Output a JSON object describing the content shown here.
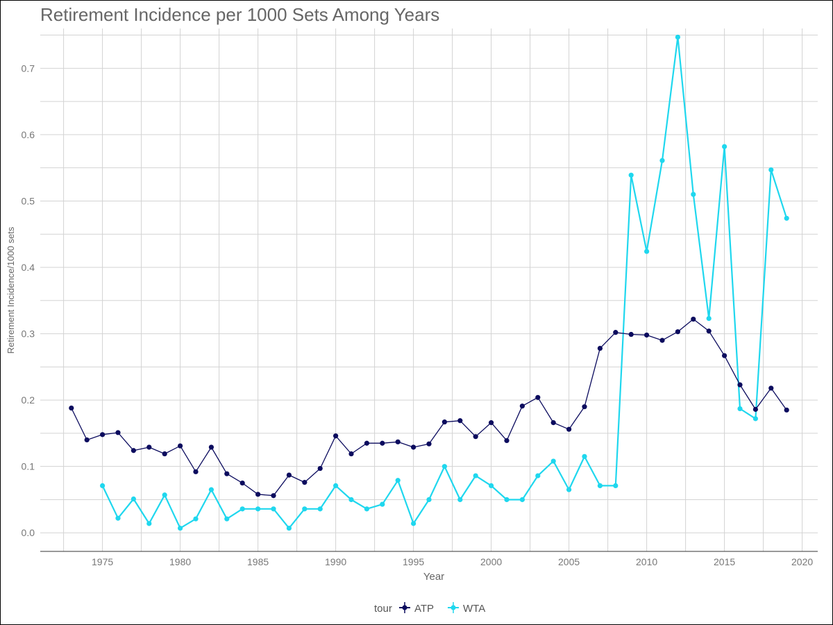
{
  "chart_data": {
    "type": "line",
    "title": "Retirement Incidence per 1000 Sets Among Years",
    "xlabel": "Year",
    "ylabel": "Retirement Incidence/1000 sets",
    "xlim": [
      1971,
      2021
    ],
    "ylim": [
      -0.028,
      0.76
    ],
    "x_ticks": [
      "1975",
      "1980",
      "1985",
      "1990",
      "1995",
      "2000",
      "2005",
      "2010",
      "2015",
      "2020"
    ],
    "y_ticks": [
      "0.0",
      "0.1",
      "0.2",
      "0.3",
      "0.4",
      "0.5",
      "0.6",
      "0.7"
    ],
    "grid": true,
    "legend": {
      "title": "tour",
      "position": "bottom"
    },
    "series": [
      {
        "name": "ATP",
        "color": "#0b0b5e",
        "x": [
          1973,
          1974,
          1975,
          1976,
          1977,
          1978,
          1979,
          1980,
          1981,
          1982,
          1983,
          1984,
          1985,
          1986,
          1987,
          1988,
          1989,
          1990,
          1991,
          1992,
          1993,
          1994,
          1995,
          1996,
          1997,
          1998,
          1999,
          2000,
          2001,
          2002,
          2003,
          2004,
          2005,
          2006,
          2007,
          2008,
          2009,
          2010,
          2011,
          2012,
          2013,
          2014,
          2015,
          2016,
          2017,
          2018,
          2019
        ],
        "values": [
          0.188,
          0.14,
          0.148,
          0.151,
          0.124,
          0.129,
          0.119,
          0.131,
          0.092,
          0.129,
          0.089,
          0.075,
          0.058,
          0.056,
          0.087,
          0.076,
          0.097,
          0.146,
          0.119,
          0.135,
          0.135,
          0.137,
          0.129,
          0.134,
          0.167,
          0.169,
          0.145,
          0.166,
          0.139,
          0.191,
          0.204,
          0.166,
          0.156,
          0.19,
          0.278,
          0.302,
          0.299,
          0.298,
          0.29,
          0.303,
          0.322,
          0.304,
          0.267,
          0.223,
          0.186,
          0.218,
          0.185
        ]
      },
      {
        "name": "WTA",
        "color": "#1fd7ee",
        "x": [
          1975,
          1976,
          1977,
          1978,
          1979,
          1980,
          1981,
          1982,
          1983,
          1984,
          1985,
          1986,
          1987,
          1988,
          1989,
          1990,
          1991,
          1992,
          1993,
          1994,
          1995,
          1996,
          1997,
          1998,
          1999,
          2000,
          2001,
          2002,
          2003,
          2004,
          2005,
          2006,
          2007,
          2008,
          2009,
          2010,
          2011,
          2012,
          2013,
          2014,
          2015,
          2016,
          2017,
          2018,
          2019
        ],
        "values": [
          0.071,
          0.022,
          0.051,
          0.014,
          0.057,
          0.007,
          0.021,
          0.065,
          0.021,
          0.036,
          0.036,
          0.036,
          0.007,
          0.036,
          0.036,
          0.071,
          0.05,
          0.036,
          0.043,
          0.079,
          0.014,
          0.05,
          0.1,
          0.05,
          0.086,
          0.071,
          0.05,
          0.05,
          0.086,
          0.108,
          0.065,
          0.115,
          0.071,
          0.071,
          0.539,
          0.424,
          0.561,
          0.747,
          0.51,
          0.323,
          0.582,
          0.187,
          0.172,
          0.547,
          0.474
        ]
      }
    ]
  }
}
